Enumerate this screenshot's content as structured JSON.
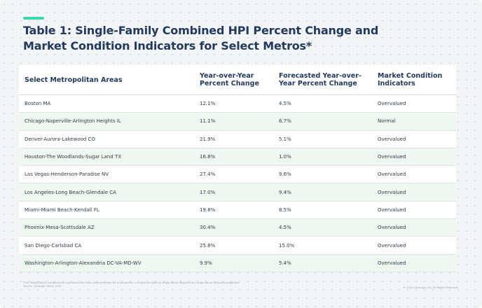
{
  "title": "Table 1: Single-Family Combined HPI Percent Change and Market Condition Indicators for Select Metros*",
  "table": {
    "headers": [
      "Select Metropolitan Areas",
      "Year-over-Year Percent Change",
      "Forecasted Year-over-Year Percent Change",
      "Market Condition Indicators"
    ],
    "rows": [
      [
        "Boston MA",
        "12.1%",
        "4.5%",
        "Overvalued"
      ],
      [
        "Chicago-Naperville-Arlington Heights IL",
        "11.1%",
        "6.7%",
        "Normal"
      ],
      [
        "Denver-Aurora-Lakewood CO",
        "21.9%",
        "5.1%",
        "Overvalued"
      ],
      [
        "Houston-The Woodlands-Sugar Land TX",
        "16.8%",
        "1.0%",
        "Overvalued"
      ],
      [
        "Las Vegas-Henderson-Paradise NV",
        "27.4%",
        "9.6%",
        "Overvalued"
      ],
      [
        "Los Angeles-Long Beach-Glendale CA",
        "17.0%",
        "9.4%",
        "Overvalued"
      ],
      [
        "Miami-Miami Beach-Kendall FL",
        "19.8%",
        "8.5%",
        "Overvalued"
      ],
      [
        "Phoenix-Mesa-Scottsdale AZ",
        "30.4%",
        "4.5%",
        "Overvalued"
      ],
      [
        "San Diego-Carlsbad CA",
        "25.8%",
        "15.0%",
        "Overvalued"
      ],
      [
        "Washington-Arlington-Alexandria DC-VA-MD-WV",
        "9.9%",
        "5.4%",
        "Overvalued"
      ]
    ]
  },
  "footnote": {
    "line1": "*The Single-Family Combined tier represents the most comprehensive set of properties, including all sales for single-family attached and single-family detached properties.",
    "line2": "Source: CoreLogic March 2022"
  },
  "copyright": "© 2022 CoreLogic, Inc. All Rights Reserved.",
  "colors": {
    "title": "#223a5e",
    "accent": "#3dd9a6",
    "row_stripe": "#eef8f1",
    "background": "#f2f4f5"
  }
}
